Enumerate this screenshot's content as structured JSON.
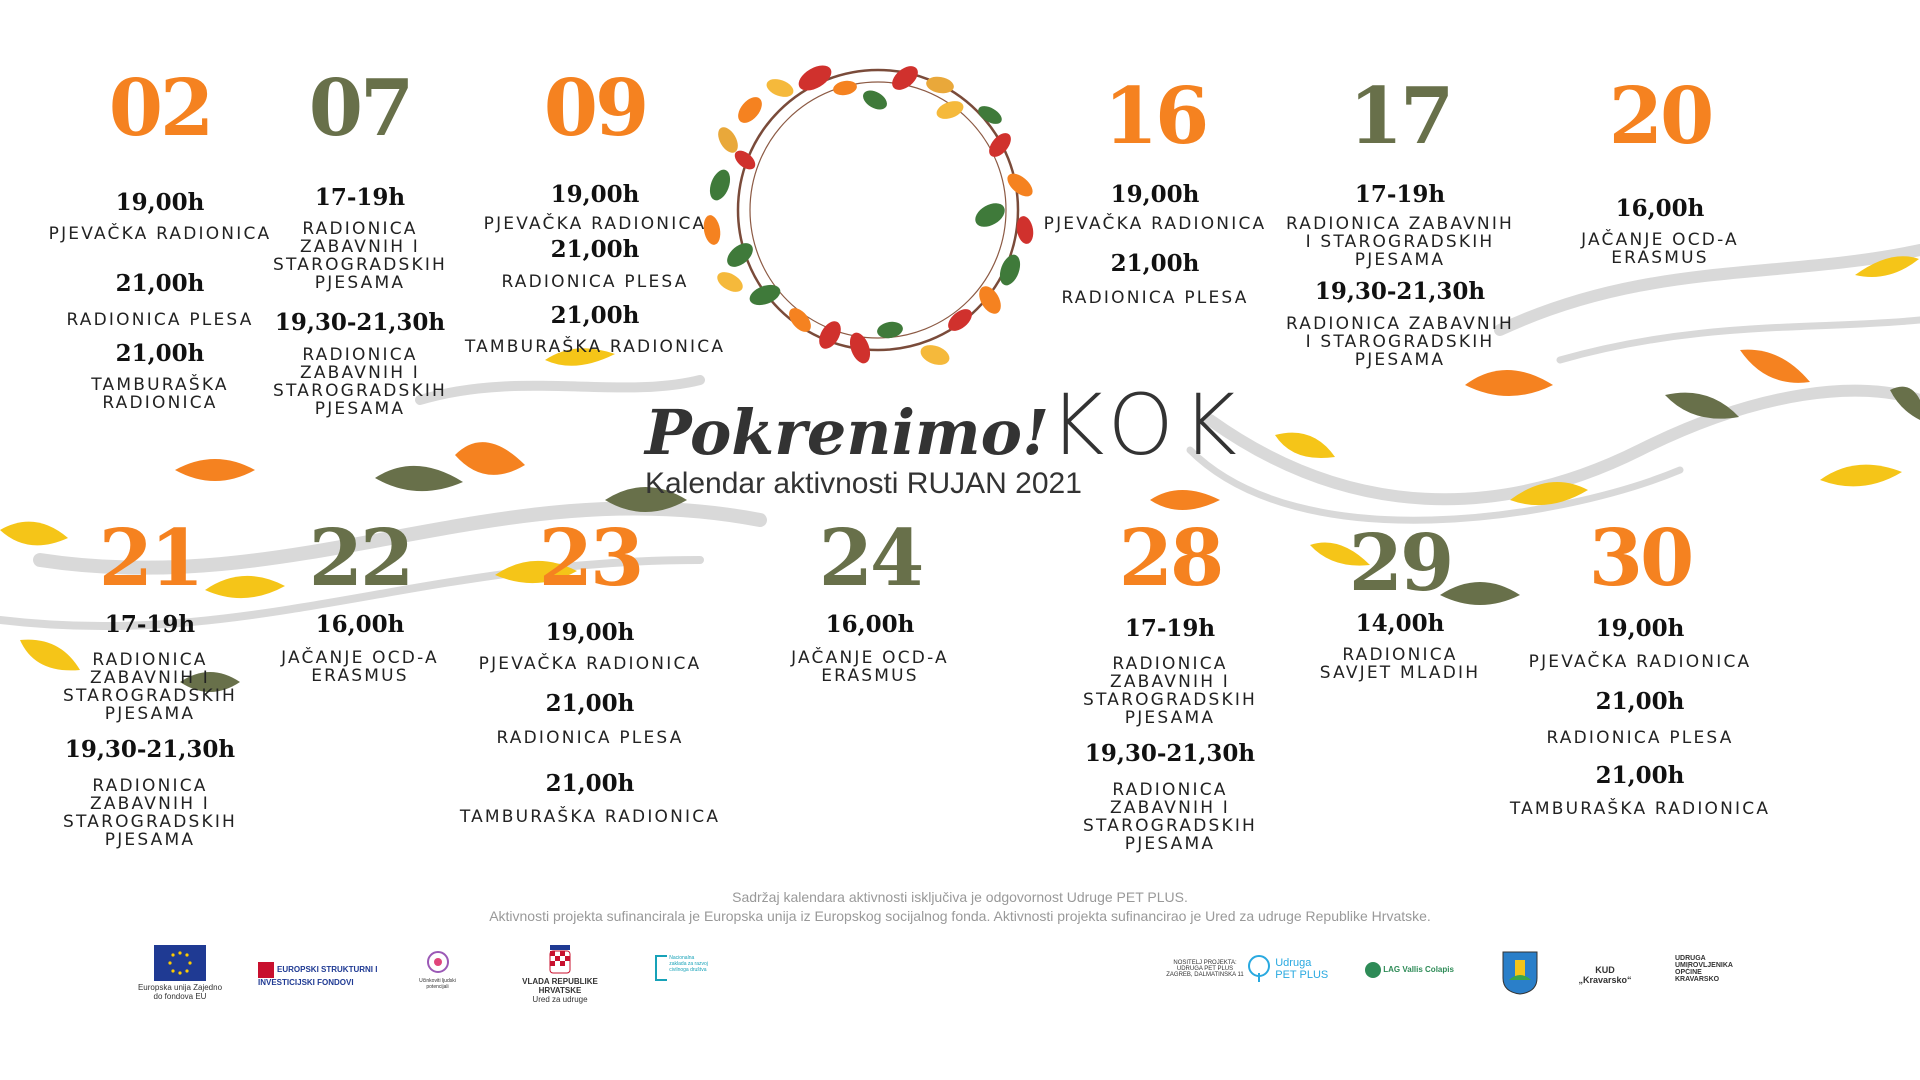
{
  "brand": {
    "name": "Pokrenimo!",
    "kok": "KOK",
    "subtitle": "Kalendar aktivnosti RUJAN 2021"
  },
  "days": [
    {
      "id": "02",
      "color": "#f58220",
      "items": [
        [
          "19,00h",
          "PJEVAČKA RADIONICA"
        ],
        [
          "21,00h",
          "RADIONICA PLESA"
        ],
        [
          "21,00h",
          "TAMBURAŠKA RADIONICA"
        ]
      ]
    },
    {
      "id": "07",
      "color": "#68704a",
      "items": [
        [
          "17-19h",
          "RADIONICA ZABAVNIH I STAROGRADSKIH PJESAMA"
        ],
        [
          "19,30-21,30h",
          "RADIONICA ZABAVNIH I STAROGRADSKIH PJESAMA"
        ]
      ]
    },
    {
      "id": "09",
      "color": "#f58220",
      "items": [
        [
          "19,00h",
          "PJEVAČKA RADIONICA"
        ],
        [
          "21,00h",
          "RADIONICA PLESA"
        ],
        [
          "21,00h",
          "TAMBURAŠKA RADIONICA"
        ]
      ]
    },
    {
      "id": "16",
      "color": "#f58220",
      "items": [
        [
          "19,00h",
          "PJEVAČKA RADIONICA"
        ],
        [
          "21,00h",
          "RADIONICA PLESA"
        ]
      ]
    },
    {
      "id": "17",
      "color": "#68704a",
      "items": [
        [
          "17-19h",
          "RADIONICA ZABAVNIH I STAROGRADSKIH PJESAMA"
        ],
        [
          "19,30-21,30h",
          "RADIONICA ZABAVNIH I STAROGRADSKIH PJESAMA"
        ]
      ]
    },
    {
      "id": "20",
      "color": "#f58220",
      "items": [
        [
          "16,00h",
          "JAČANJE OCD-A ERASMUS"
        ]
      ]
    },
    {
      "id": "21",
      "color": "#f58220",
      "items": [
        [
          "17-19h",
          "RADIONICA ZABAVNIH I STAROGRADSKIH PJESAMA"
        ],
        [
          "19,30-21,30h",
          "RADIONICA ZABAVNIH I STAROGRADSKIH PJESAMA"
        ]
      ]
    },
    {
      "id": "22",
      "color": "#68704a",
      "items": [
        [
          "16,00h",
          "JAČANJE OCD-A ERASMUS"
        ]
      ]
    },
    {
      "id": "23",
      "color": "#f58220",
      "items": [
        [
          "19,00h",
          "PJEVAČKA RADIONICA"
        ],
        [
          "21,00h",
          "RADIONICA PLESA"
        ],
        [
          "21,00h",
          "TAMBURAŠKA RADIONICA"
        ]
      ]
    },
    {
      "id": "24",
      "color": "#68704a",
      "items": [
        [
          "16,00h",
          "JAČANJE OCD-A ERASMUS"
        ]
      ]
    },
    {
      "id": "28",
      "color": "#f58220",
      "items": [
        [
          "17-19h",
          "RADIONICA ZABAVNIH I STAROGRADSKIH PJESAMA"
        ],
        [
          "19,30-21,30h",
          "RADIONICA ZABAVNIH I STAROGRADSKIH PJESAMA"
        ]
      ]
    },
    {
      "id": "29",
      "color": "#68704a",
      "items": [
        [
          "14,00h",
          "RADIONICA SAVJET MLADIH"
        ]
      ]
    },
    {
      "id": "30",
      "color": "#f58220",
      "items": [
        [
          "19,00h",
          "PJEVAČKA RADIONICA"
        ],
        [
          "21,00h",
          "RADIONICA PLESA"
        ],
        [
          "21,00h",
          "TAMBURAŠKA RADIONICA"
        ]
      ]
    }
  ],
  "disclaimer": {
    "line1": "Sadržaj kalendara aktivnosti isključiva je odgovornost Udruge PET PLUS.",
    "line2": "Aktivnosti projekta sufinancirala je Europska unija iz Europskog socijalnog fonda.  Aktivnosti projekta sufinancirao je Ured za udruge Republike Hrvatske."
  },
  "logos": {
    "eu": "Europska unija Zajedno do fondova EU",
    "esif": "EUROPSKI STRUKTURNI I INVESTICIJSKI FONDOVI",
    "esf": "Učinkoviti ljudski potencijali",
    "vlada": "VLADA REPUBLIKE HRVATSKE",
    "vlada_sub": "Ured za udruge",
    "zaklada": "Nacionalna zaklada za razvoj civilnoga društva",
    "nositelj": "NOSITELJ PROJEKTA: UDRUGA PET PLUS ZAGREB, DALMATINSKA 11",
    "petplus": "Udruga PET PLUS",
    "lag": "LAG Vallis Colapis",
    "kud": "KUD „Kravarsko“",
    "umirovljenici": "UDRUGA UMIROVLJENIKA OPĆINE KRAVARSKO"
  }
}
